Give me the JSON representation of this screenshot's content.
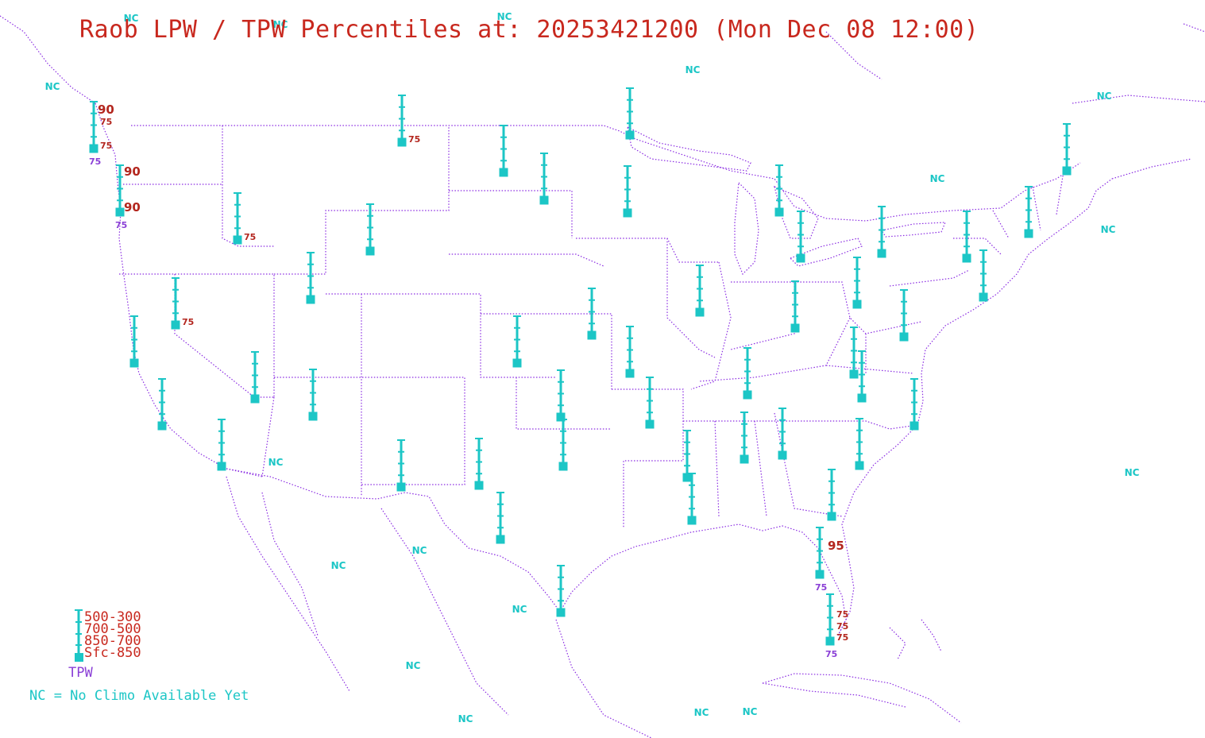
{
  "title": "Raob LPW / TPW Percentiles at: 20253421200 (Mon Dec 08 12:00)",
  "legend": {
    "layers": [
      "500-300",
      "700-500",
      "850-700",
      "Sfc-850"
    ],
    "tpw_label": "TPW",
    "nc_note": "NC = No Climo Available Yet"
  },
  "nc_label": "NC",
  "colors": {
    "station": "#1cc6c6",
    "percentile": "#b3261e",
    "tpw": "#8a3fd6",
    "borders": "#8a2be2"
  },
  "stations": [
    {
      "id": "s01",
      "labels": [
        {
          "t": "90",
          "k": "big"
        },
        {
          "t": "75",
          "k": "red"
        },
        {
          "t": "75",
          "k": "red"
        },
        {
          "t": "75",
          "k": "tpw"
        }
      ]
    },
    {
      "id": "s02",
      "labels": [
        {
          "t": "90",
          "k": "big"
        },
        {
          "t": "90",
          "k": "big"
        },
        {
          "t": "75",
          "k": "tpw"
        }
      ]
    },
    {
      "id": "s03",
      "labels": [
        {
          "t": "75",
          "k": "red"
        }
      ]
    },
    {
      "id": "s04",
      "labels": [
        {
          "t": "75",
          "k": "red"
        }
      ]
    },
    {
      "id": "s05",
      "labels": [
        {
          "t": "75",
          "k": "red"
        }
      ]
    },
    {
      "id": "s06",
      "labels": [
        {
          "t": "95",
          "k": "big"
        },
        {
          "t": "75",
          "k": "tpw"
        }
      ]
    },
    {
      "id": "s07",
      "labels": [
        {
          "t": "75",
          "k": "red"
        },
        {
          "t": "75",
          "k": "red"
        },
        {
          "t": "75",
          "k": "red"
        },
        {
          "t": "75",
          "k": "tpw"
        }
      ]
    }
  ]
}
